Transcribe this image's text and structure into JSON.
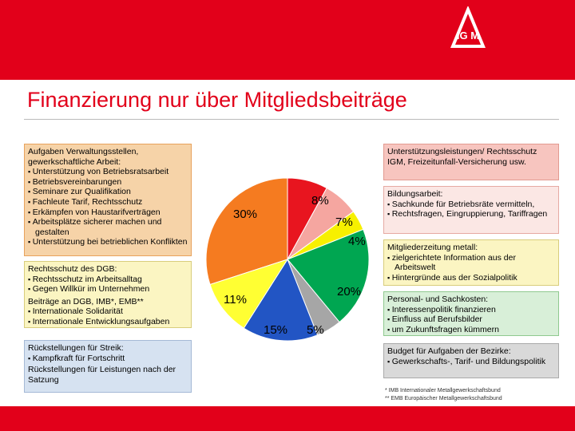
{
  "colors": {
    "brand_red": "#e2001a"
  },
  "logo": {
    "icon": "ig-metall-logo-icon",
    "text": "IG M"
  },
  "title": "Finanzierung nur über Mitgliedsbeiträge",
  "left_boxes": {
    "verwaltung": {
      "heading": "Aufgaben Verwaltungsstellen, gewerkschaftliche Arbeit:",
      "items": [
        "Unterstützung von Betriebsratsarbeit",
        "Betriebsvereinbarungen",
        "Seminare zur Qualifikation",
        "Fachleute Tarif, Rechtsschutz",
        "Erkämpfen von Haustarifverträgen",
        "Arbeitsplätze sicherer machen und gestalten",
        "Unterstützung bei betrieblichen Konflikten"
      ]
    },
    "rechtsschutz": {
      "heading": "Rechtsschutz des DGB:",
      "items": [
        "Rechtsschutz im Arbeitsalltag",
        "Gegen Willkür im Unternehmen"
      ],
      "heading2": "Beiträge an DGB, IMB*, EMB**",
      "items2": [
        "Internationale Solidarität",
        "Internationale Entwicklungsaufgaben"
      ]
    },
    "rueckstellungen": {
      "heading": "Rückstellungen für Streik:",
      "items": [
        "Kampfkraft für Fortschritt"
      ],
      "text": "Rückstellungen für Leistungen nach der Satzung"
    }
  },
  "right_boxes": {
    "unterstuetzung": {
      "heading": "Unterstützungsleistungen/ Rechtsschutz IGM, Freizeitunfall-Versicherung usw."
    },
    "bildung": {
      "heading": "Bildungsarbeit:",
      "items": [
        "Sachkunde für Betriebsräte vermitteln,",
        "Rechtsfragen, Eingruppierung, Tariffragen"
      ]
    },
    "mitgliederzeitung": {
      "heading": "Mitgliederzeitung metall:",
      "items": [
        "zielgerichtete Information aus der Arbeitswelt",
        "Hintergründe aus der Sozialpolitik"
      ]
    },
    "personal": {
      "heading": "Personal- und Sachkosten:",
      "items": [
        "Interessenpolitik finanzieren",
        "Einfluss auf Berufsbilder",
        "um Zukunftsfragen kümmern"
      ]
    },
    "bezirke": {
      "heading": "Budget für Aufgaben der Bezirke:",
      "items": [
        "Gewerkschafts-, Tarif- und Bildungspolitik"
      ]
    }
  },
  "chart_data": {
    "type": "pie",
    "slices": [
      {
        "label": "30%",
        "value": 30,
        "color": "#f57b20"
      },
      {
        "label": "8%",
        "value": 8,
        "color": "#e8151f"
      },
      {
        "label": "7%",
        "value": 7,
        "color": "#f5a6a0"
      },
      {
        "label": "4%",
        "value": 4,
        "color": "#f7f000"
      },
      {
        "label": "20%",
        "value": 20,
        "color": "#00a651"
      },
      {
        "label": "5%",
        "value": 5,
        "color": "#a6a6a6"
      },
      {
        "label": "15%",
        "value": 15,
        "color": "#2255c4"
      },
      {
        "label": "11%",
        "value": 11,
        "color": "#ffff33"
      }
    ]
  },
  "footnotes": [
    "*   IMB   Internationaler Metallgewerkschaftsbund",
    "**  EMB  Europäischer Metallgewerkschaftsbund"
  ]
}
